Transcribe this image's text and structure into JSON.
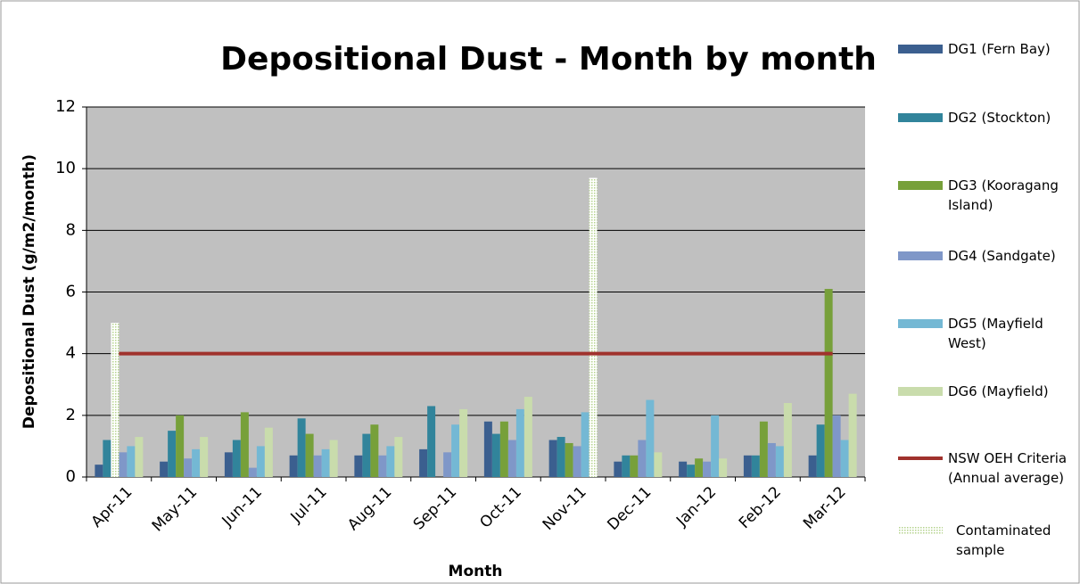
{
  "chart_data": {
    "type": "bar",
    "title": "Depositional Dust - Month by month",
    "x_label": "Month",
    "y_label": "Depositional Dust (g/m2/month)",
    "categories": [
      "Apr-11",
      "May-11",
      "Jun-11",
      "Jul-11",
      "Aug-11",
      "Sep-11",
      "Oct-11",
      "Nov-11",
      "Dec-11",
      "Jan-12",
      "Feb-12",
      "Mar-12"
    ],
    "series": [
      {
        "name": "DG1 (Fern Bay)",
        "color": "#3b5f8f",
        "values": [
          0.4,
          0.5,
          0.8,
          0.7,
          0.7,
          0.9,
          1.8,
          1.2,
          0.5,
          0.5,
          0.7,
          0.7
        ]
      },
      {
        "name": "DG2 (Stockton)",
        "color": "#31849b",
        "values": [
          1.2,
          1.5,
          1.2,
          1.9,
          1.4,
          2.3,
          1.4,
          1.3,
          0.7,
          0.4,
          0.7,
          1.7
        ]
      },
      {
        "name": "DG3 (Kooragang Island)",
        "color": "#77a03a",
        "values": [
          null,
          2.0,
          2.1,
          1.4,
          1.7,
          null,
          1.8,
          1.1,
          0.7,
          0.6,
          1.8,
          6.1
        ]
      },
      {
        "name": "DG4 (Sandgate)",
        "color": "#7f97c8",
        "values": [
          0.8,
          0.6,
          0.3,
          0.7,
          0.7,
          0.8,
          1.2,
          1.0,
          1.2,
          0.5,
          1.1,
          2.0
        ]
      },
      {
        "name": "DG5 (Mayfield West)",
        "color": "#74b8d4",
        "values": [
          1.0,
          0.9,
          1.0,
          0.9,
          1.0,
          1.7,
          2.2,
          2.1,
          2.5,
          2.0,
          1.0,
          1.2
        ]
      },
      {
        "name": "DG6 (Mayfield)",
        "color": "#c9dcac",
        "values": [
          1.3,
          1.3,
          1.6,
          1.2,
          1.3,
          2.2,
          2.6,
          null,
          0.8,
          0.6,
          2.4,
          2.7
        ]
      },
      {
        "name": "NSW OEH Criteria (Annual average)",
        "color": "#a0322d",
        "type": "line",
        "values": [
          4,
          4,
          4,
          4,
          4,
          4,
          4,
          4,
          4,
          4,
          4,
          4
        ]
      },
      {
        "name": "Contaminated sample",
        "color": "#b5d38e",
        "type": "pattern",
        "values": [
          5.0,
          null,
          null,
          null,
          null,
          null,
          null,
          9.7,
          null,
          null,
          null,
          null
        ]
      }
    ],
    "ylim": [
      0,
      12
    ],
    "yticks": [
      0,
      2,
      4,
      6,
      8,
      10,
      12
    ],
    "grid": true
  }
}
